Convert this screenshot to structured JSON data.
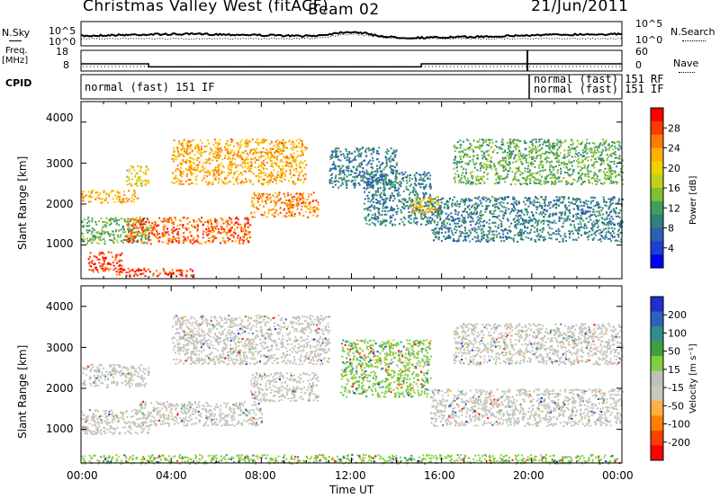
{
  "header": {
    "station": "Christmas Valley West (fitACF)",
    "beam": "Beam 02",
    "date": "21/Jun/2011"
  },
  "noise_panel": {
    "left_label": "N.Sky",
    "right_label": "N.Search",
    "ytick_top": "10^5",
    "ytick_bottom": "10^0"
  },
  "freq_panel": {
    "left_label_line1": "Freq.",
    "left_label_line2": "[MHz]",
    "right_label": "Nave",
    "left_ticks": [
      "18",
      "8"
    ],
    "right_ticks": [
      "60",
      "0"
    ]
  },
  "cpid_panel": {
    "label": "CPID",
    "modes": [
      {
        "text": "normal (fast) 151 IF"
      },
      {
        "text": "normal (fast) 151 RF"
      },
      {
        "text": "normal (fast) 151 IF"
      }
    ]
  },
  "power_panel": {
    "ylabel": "Slant Range [km]",
    "yticks": [
      "4000",
      "3000",
      "2000",
      "1000"
    ],
    "colorbar_label": "Power [dB]",
    "colorbar_ticks": [
      "28",
      "24",
      "20",
      "16",
      "12",
      "8",
      "4"
    ],
    "colorbar_colors": [
      "#ff0000",
      "#ff3a00",
      "#ff7a00",
      "#ffb000",
      "#f0d000",
      "#c0d020",
      "#7fbf30",
      "#3f9f5f",
      "#2f7f7f",
      "#2f5faf",
      "#1f3fcf",
      "#0000ff"
    ]
  },
  "velocity_panel": {
    "ylabel": "Slant Range [km]",
    "yticks": [
      "4000",
      "3000",
      "2000",
      "1000"
    ],
    "colorbar_label": "Velocity [m s⁻¹]",
    "colorbar_ticks": [
      "200",
      "100",
      "50",
      "15",
      "-15",
      "-50",
      "-100",
      "-200"
    ],
    "colorbar_colors": [
      "#1f2fcf",
      "#2f5fbf",
      "#2f8f8f",
      "#3f9f3f",
      "#7fcf3f",
      "#c0c0b8",
      "#c8c8c0",
      "#ffb040",
      "#ff8000",
      "#ff4000",
      "#ff0000"
    ]
  },
  "x_axis": {
    "label": "Time UT",
    "ticks": [
      "00:00",
      "04:00",
      "08:00",
      "12:00",
      "16:00",
      "20:00",
      "00:00"
    ]
  },
  "chart_data": {
    "type": "heatmap",
    "x_range_hours": [
      0,
      24
    ],
    "y_range_km": [
      180,
      4500
    ],
    "freq_mhz": [
      {
        "x": 0,
        "y": 11.5
      },
      {
        "x": 3.0,
        "y": 11.5
      },
      {
        "x": 3.0,
        "y": 10.0
      },
      {
        "x": 15.1,
        "y": 10.0
      },
      {
        "x": 15.1,
        "y": 11.5
      },
      {
        "x": 24,
        "y": 11.5
      }
    ],
    "power_echo_regions": [
      {
        "t0": 0.0,
        "t1": 2.5,
        "r0": 2050,
        "r1": 2350,
        "level_db": 22
      },
      {
        "t0": 2.0,
        "t1": 3.0,
        "r0": 2450,
        "r1": 2950,
        "level_db": 18
      },
      {
        "t0": 0.3,
        "t1": 1.8,
        "r0": 350,
        "r1": 850,
        "level_db": 28
      },
      {
        "t0": 1.5,
        "t1": 5.0,
        "r0": 250,
        "r1": 450,
        "level_db": 28
      },
      {
        "t0": 0.0,
        "t1": 3.0,
        "r0": 1050,
        "r1": 1700,
        "level_db": 12
      },
      {
        "t0": 2.0,
        "t1": 7.5,
        "r0": 1050,
        "r1": 1700,
        "level_db": 26
      },
      {
        "t0": 7.5,
        "t1": 10.5,
        "r0": 1700,
        "r1": 2300,
        "level_db": 24
      },
      {
        "t0": 4.0,
        "t1": 10.0,
        "r0": 2500,
        "r1": 3600,
        "level_db": 22
      },
      {
        "t0": 11.0,
        "t1": 14.0,
        "r0": 2400,
        "r1": 3400,
        "level_db": 8
      },
      {
        "t0": 12.5,
        "t1": 15.5,
        "r0": 1500,
        "r1": 2800,
        "level_db": 8
      },
      {
        "t0": 14.5,
        "t1": 16.0,
        "r0": 1800,
        "r1": 2200,
        "level_db": 20
      },
      {
        "t0": 15.5,
        "t1": 24.0,
        "r0": 1100,
        "r1": 2200,
        "level_db": 8
      },
      {
        "t0": 16.5,
        "t1": 24.0,
        "r0": 2500,
        "r1": 3600,
        "level_db": 12
      }
    ],
    "velocity_echo_regions": [
      {
        "t0": 0.0,
        "t1": 3.0,
        "r0": 2050,
        "r1": 2600,
        "level_ms": 0
      },
      {
        "t0": 0.0,
        "t1": 3.0,
        "r0": 900,
        "r1": 1500,
        "level_ms": 0
      },
      {
        "t0": 2.5,
        "t1": 8.0,
        "r0": 1100,
        "r1": 1700,
        "level_ms": 0
      },
      {
        "t0": 7.5,
        "t1": 10.5,
        "r0": 1700,
        "r1": 2400,
        "level_ms": 0
      },
      {
        "t0": 4.0,
        "t1": 11.0,
        "r0": 2600,
        "r1": 3800,
        "level_ms": 0
      },
      {
        "t0": 11.5,
        "t1": 15.5,
        "r0": 1800,
        "r1": 3200,
        "level_ms": 30
      },
      {
        "t0": 15.5,
        "t1": 24.0,
        "r0": 1100,
        "r1": 2000,
        "level_ms": 0
      },
      {
        "t0": 16.5,
        "t1": 24.0,
        "r0": 2600,
        "r1": 3600,
        "level_ms": 0
      },
      {
        "t0": 0.0,
        "t1": 24.0,
        "r0": 180,
        "r1": 400,
        "level_ms": 30
      }
    ]
  }
}
